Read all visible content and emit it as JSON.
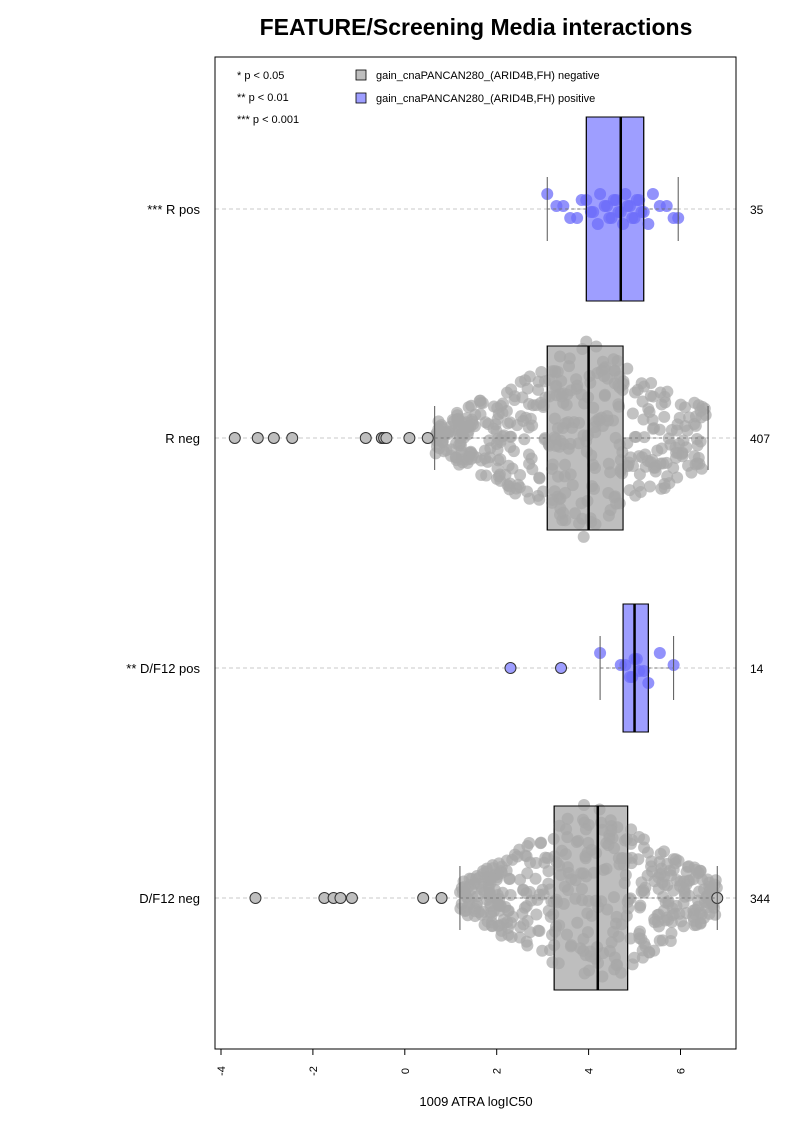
{
  "chart_data": {
    "type": "boxplot-beeswarm",
    "title": "FEATURE/Screening Media interactions",
    "xlabel": "1009 ATRA logIC50",
    "xlim": [
      -4.2,
      7.2
    ],
    "x_ticks": [
      -4,
      -2,
      0,
      2,
      4,
      6
    ],
    "x_tick_labels": [
      "-4",
      "-2",
      "0",
      "2",
      "4",
      "6"
    ],
    "significance_legend": [
      "* p < 0.05",
      "** p < 0.01",
      "*** p < 0.001"
    ],
    "legend": [
      {
        "label": "gain_cnaPANCAN280_(ARID4B,FH) negative",
        "color": "#bebebe"
      },
      {
        "label": "gain_cnaPANCAN280_(ARID4B,FH) positive",
        "color": "#9e9eff"
      }
    ],
    "groups": [
      {
        "label": "*** R pos",
        "n": "35",
        "status": "positive",
        "whisker_low": 3.1,
        "q1": 3.95,
        "median": 4.7,
        "q3": 5.2,
        "whisker_high": 5.95,
        "points": [
          3.1,
          3.3,
          3.45,
          3.6,
          3.75,
          3.85,
          3.95,
          4.05,
          4.1,
          4.2,
          4.25,
          4.35,
          4.4,
          4.45,
          4.5,
          4.55,
          4.6,
          4.65,
          4.7,
          4.75,
          4.8,
          4.85,
          4.9,
          4.95,
          5.0,
          5.05,
          5.1,
          5.15,
          5.2,
          5.3,
          5.4,
          5.55,
          5.7,
          5.85,
          5.95
        ],
        "outliers": []
      },
      {
        "label": "R neg",
        "n": "407",
        "status": "negative",
        "whisker_low": 0.65,
        "q1": 3.1,
        "median": 4.0,
        "q3": 4.75,
        "whisker_high": 6.6,
        "points": [],
        "outliers": [
          -3.7,
          -3.2,
          -2.85,
          -2.45,
          -0.85,
          -0.5,
          -0.45,
          -0.4,
          0.1,
          0.5
        ]
      },
      {
        "label": "** D/F12 pos",
        "n": "14",
        "status": "positive",
        "whisker_low": 4.25,
        "q1": 4.75,
        "median": 5.0,
        "q3": 5.3,
        "whisker_high": 5.85,
        "points": [
          4.25,
          4.7,
          4.8,
          4.9,
          4.95,
          5.0,
          5.05,
          5.1,
          5.2,
          5.3,
          5.55,
          5.85
        ],
        "outliers": [
          2.3,
          3.4
        ]
      },
      {
        "label": "D/F12 neg",
        "n": "344",
        "status": "negative",
        "whisker_low": 1.2,
        "q1": 3.25,
        "median": 4.2,
        "q3": 4.85,
        "whisker_high": 6.8,
        "points": [],
        "outliers": [
          -3.25,
          -1.75,
          -1.55,
          -1.4,
          -1.15,
          0.4,
          0.8,
          6.8
        ]
      }
    ]
  },
  "colors": {
    "negative_fill": "#bebebe",
    "negative_point": "#a8a8a8",
    "positive_fill": "#9e9eff",
    "positive_point": "#6d6dfa",
    "grid": "#c8c8c8"
  }
}
